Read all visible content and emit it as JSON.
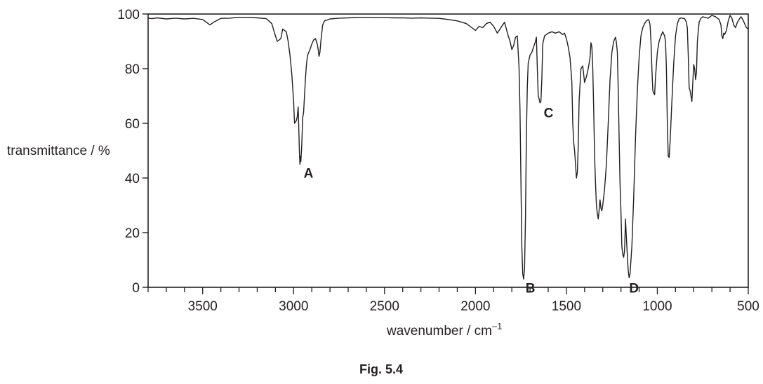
{
  "figure": {
    "caption": "Fig. 5.4"
  },
  "chart_data": {
    "type": "line",
    "title": "",
    "xlabel_main": "wavenumber / cm",
    "xlabel_sup": "–1",
    "ylabel": "transmittance / %",
    "xlim": [
      3800,
      500
    ],
    "ylim": [
      0,
      100
    ],
    "x_reversed": true,
    "grid": false,
    "xticks": [
      3500,
      3000,
      2500,
      2000,
      1500,
      1000,
      500
    ],
    "yticks": [
      0,
      20,
      40,
      60,
      80,
      100
    ],
    "annotations": [
      {
        "label": "A",
        "x": 2960,
        "y": 45
      },
      {
        "label": "B",
        "x": 1740,
        "y": 3
      },
      {
        "label": "C",
        "x": 1640,
        "y": 67
      },
      {
        "label": "D",
        "x": 1170,
        "y": 3
      }
    ],
    "series": [
      {
        "x": [
          3800,
          3780,
          3750,
          3700,
          3650,
          3600,
          3550,
          3500,
          3480,
          3460,
          3440,
          3400,
          3350,
          3300,
          3250,
          3200,
          3150,
          3120,
          3100,
          3090,
          3070,
          3060,
          3050,
          3040,
          3030,
          3020,
          3010,
          3000,
          2995,
          2985,
          2980,
          2975,
          2970,
          2968,
          2965,
          2962,
          2960,
          2955,
          2950,
          2945,
          2940,
          2935,
          2930,
          2925,
          2920,
          2910,
          2900,
          2890,
          2880,
          2870,
          2865,
          2860,
          2855,
          2850,
          2840,
          2830,
          2800,
          2750,
          2700,
          2650,
          2600,
          2550,
          2500,
          2450,
          2400,
          2350,
          2300,
          2250,
          2200,
          2150,
          2100,
          2050,
          2020,
          2000,
          1980,
          1960,
          1940,
          1920,
          1900,
          1880,
          1860,
          1840,
          1820,
          1810,
          1800,
          1790,
          1780,
          1770,
          1760,
          1755,
          1750,
          1745,
          1740,
          1735,
          1730,
          1725,
          1720,
          1715,
          1710,
          1700,
          1690,
          1680,
          1670,
          1665,
          1660,
          1655,
          1650,
          1645,
          1640,
          1635,
          1630,
          1620,
          1600,
          1580,
          1560,
          1540,
          1520,
          1510,
          1500,
          1490,
          1480,
          1470,
          1465,
          1460,
          1455,
          1450,
          1445,
          1440,
          1435,
          1430,
          1420,
          1410,
          1400,
          1390,
          1380,
          1370,
          1365,
          1360,
          1355,
          1350,
          1345,
          1340,
          1335,
          1330,
          1325,
          1320,
          1315,
          1310,
          1305,
          1300,
          1290,
          1280,
          1270,
          1260,
          1250,
          1240,
          1230,
          1225,
          1220,
          1215,
          1210,
          1205,
          1200,
          1195,
          1190,
          1185,
          1180,
          1175,
          1170,
          1165,
          1160,
          1155,
          1150,
          1140,
          1130,
          1120,
          1110,
          1100,
          1090,
          1080,
          1070,
          1060,
          1050,
          1045,
          1040,
          1035,
          1030,
          1025,
          1020,
          1015,
          1010,
          1000,
          990,
          980,
          970,
          960,
          955,
          950,
          945,
          940,
          935,
          930,
          920,
          910,
          900,
          890,
          880,
          870,
          860,
          850,
          840,
          835,
          830,
          825,
          820,
          815,
          810,
          805,
          800,
          795,
          790,
          785,
          780,
          770,
          760,
          750,
          740,
          720,
          700,
          680,
          660,
          650,
          645,
          640,
          635,
          630,
          620,
          610,
          600,
          590,
          580,
          570,
          560,
          550,
          540,
          530,
          520,
          510,
          500
        ],
        "y": [
          98.5,
          98.3,
          98.6,
          98.2,
          98.5,
          98.2,
          98.4,
          98.0,
          97.0,
          96.0,
          97.0,
          98.4,
          98.5,
          98.8,
          98.8,
          98.6,
          98.3,
          96.5,
          92.0,
          90.0,
          91.0,
          94.5,
          94.0,
          93.5,
          90.0,
          85.0,
          78.0,
          68.0,
          60.0,
          61.0,
          62.5,
          66.0,
          55.0,
          49.0,
          45.0,
          48.0,
          46.0,
          52.0,
          62.0,
          64.0,
          70.0,
          76.0,
          81.0,
          84.0,
          85.5,
          87.0,
          89.0,
          90.5,
          91.0,
          89.0,
          87.0,
          84.5,
          86.0,
          90.0,
          96.0,
          97.5,
          98.2,
          98.5,
          98.6,
          98.8,
          98.8,
          98.7,
          98.7,
          98.6,
          98.6,
          98.5,
          98.6,
          98.5,
          98.4,
          98.0,
          97.5,
          96.5,
          95.0,
          94.0,
          95.5,
          95.0,
          96.5,
          97.0,
          95.5,
          93.0,
          95.0,
          97.0,
          92.0,
          90.0,
          87.0,
          88.5,
          91.5,
          92.0,
          80.0,
          65.0,
          40.0,
          15.0,
          5.0,
          3.0,
          7.0,
          25.0,
          55.0,
          73.0,
          82.0,
          85.0,
          86.0,
          88.0,
          90.0,
          91.5,
          80.0,
          70.0,
          69.0,
          67.5,
          68.0,
          76.0,
          89.0,
          92.0,
          93.0,
          93.5,
          93.0,
          93.5,
          92.5,
          93.0,
          91.0,
          88.0,
          84.0,
          75.0,
          60.0,
          53.0,
          50.0,
          45.0,
          40.0,
          42.0,
          52.0,
          68.0,
          80.0,
          81.0,
          75.0,
          77.0,
          80.0,
          84.0,
          89.5,
          88.0,
          80.0,
          65.0,
          48.0,
          38.0,
          30.0,
          27.0,
          25.0,
          28.0,
          32.0,
          29.0,
          28.0,
          30.0,
          36.0,
          45.0,
          60.0,
          76.0,
          86.0,
          90.0,
          91.5,
          89.5,
          86.0,
          72.0,
          55.0,
          38.0,
          28.0,
          15.0,
          12.0,
          11.0,
          13.5,
          25.0,
          18.0,
          12.0,
          6.0,
          3.5,
          5.0,
          15.0,
          33.0,
          55.0,
          72.0,
          84.0,
          92.0,
          95.0,
          96.5,
          97.5,
          98.0,
          97.5,
          96.0,
          90.0,
          80.0,
          72.0,
          71.0,
          70.5,
          77.0,
          86.0,
          90.0,
          92.0,
          93.5,
          92.0,
          90.0,
          80.0,
          60.0,
          48.0,
          47.5,
          53.0,
          68.0,
          82.0,
          92.0,
          96.5,
          98.2,
          98.6,
          98.4,
          98.3,
          97.0,
          95.0,
          85.0,
          73.0,
          72.0,
          70.0,
          68.0,
          75.0,
          81.5,
          80.0,
          76.0,
          78.5,
          90.0,
          97.0,
          98.5,
          99.0,
          98.8,
          98.5,
          99.5,
          99.0,
          98.0,
          96.0,
          92.0,
          91.0,
          93.0,
          92.5,
          94.0,
          97.5,
          99.5,
          98.5,
          96.0,
          95.0,
          97.0,
          98.0,
          99.0,
          98.0,
          96.5,
          95.0,
          94.5
        ]
      }
    ]
  }
}
